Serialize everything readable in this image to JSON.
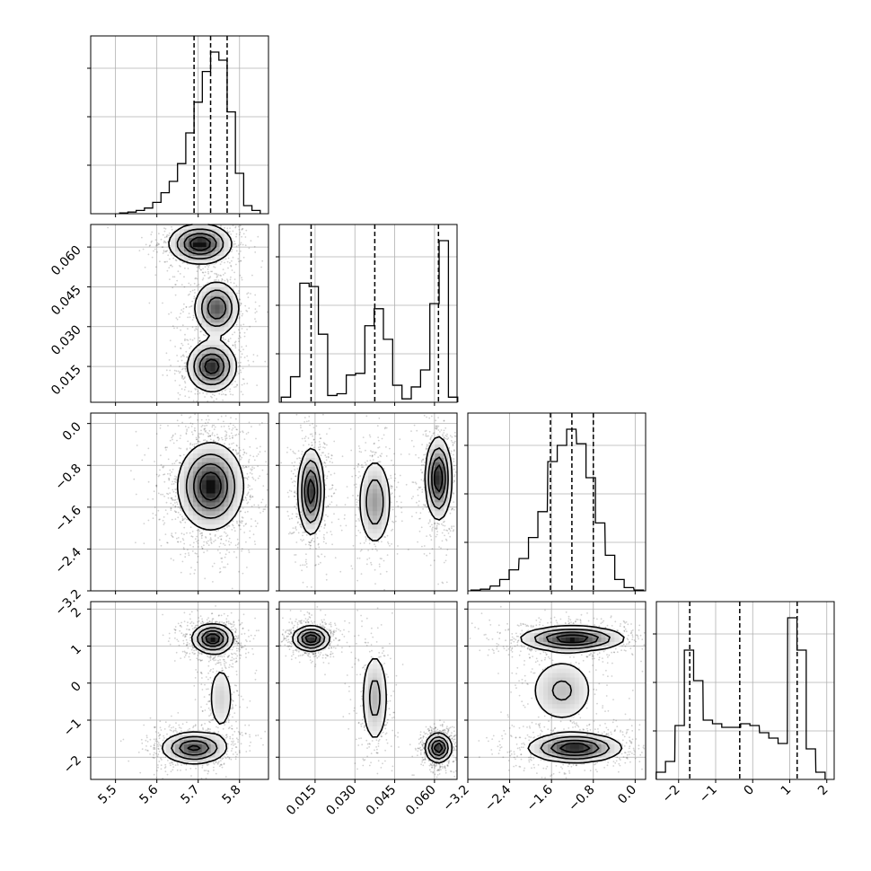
{
  "chart_data": {
    "type": "corner",
    "parameters": [
      {
        "name": "",
        "range": [
          5.44,
          5.87
        ],
        "ticks": [
          5.5,
          5.6,
          5.7,
          5.8
        ],
        "tick_labels": [
          "5.5",
          "5.6",
          "5.7",
          "5.8"
        ],
        "quantiles": [
          5.69,
          5.73,
          5.77
        ]
      },
      {
        "name": "",
        "range": [
          0.0015,
          0.0685
        ],
        "ticks": [
          0.015,
          0.03,
          0.045,
          0.06
        ],
        "tick_labels": [
          "0.015",
          "0.030",
          "0.045",
          "0.060"
        ],
        "quantiles": [
          0.0135,
          0.0375,
          0.0615
        ]
      },
      {
        "name": "",
        "range": [
          -3.2,
          0.2
        ],
        "ticks": [
          -3.2,
          -2.4,
          -1.6,
          -0.8,
          0.0
        ],
        "tick_labels": [
          "−3.2",
          "−2.4",
          "−1.6",
          "−0.8",
          "0.0"
        ],
        "quantiles": [
          -1.62,
          -1.21,
          -0.8
        ]
      },
      {
        "name": "",
        "range": [
          -2.6,
          2.2
        ],
        "ticks": [
          -2,
          -1,
          0,
          1,
          2
        ],
        "tick_labels": [
          "−2",
          "−1",
          "0",
          "1",
          "2"
        ],
        "quantiles": [
          -1.7,
          -0.35,
          1.2
        ]
      }
    ],
    "histograms": [
      {
        "param": 0,
        "x": [
          5.52,
          5.54,
          5.56,
          5.58,
          5.6,
          5.62,
          5.64,
          5.66,
          5.68,
          5.7,
          5.72,
          5.74,
          5.76,
          5.78,
          5.8,
          5.82,
          5.84
        ],
        "values": [
          0.005,
          0.01,
          0.02,
          0.035,
          0.07,
          0.13,
          0.2,
          0.31,
          0.5,
          0.69,
          0.88,
          1.0,
          0.95,
          0.63,
          0.25,
          0.05,
          0.02
        ]
      },
      {
        "param": 1,
        "x": [
          0.004,
          0.0075,
          0.011,
          0.0145,
          0.018,
          0.0215,
          0.025,
          0.0285,
          0.032,
          0.0355,
          0.039,
          0.0425,
          0.046,
          0.0495,
          0.053,
          0.0565,
          0.06,
          0.0635,
          0.067
        ],
        "values": [
          0.03,
          0.15,
          0.7,
          0.68,
          0.4,
          0.04,
          0.05,
          0.16,
          0.17,
          0.45,
          0.55,
          0.37,
          0.1,
          0.02,
          0.09,
          0.19,
          0.58,
          0.95,
          0.03
        ]
      },
      {
        "param": 2,
        "x": [
          -3.05,
          -2.87,
          -2.68,
          -2.5,
          -2.32,
          -2.13,
          -1.95,
          -1.77,
          -1.58,
          -1.4,
          -1.22,
          -1.03,
          -0.85,
          -0.67,
          -0.48,
          -0.3,
          -0.12,
          0.07
        ],
        "values": [
          0.005,
          0.01,
          0.03,
          0.07,
          0.13,
          0.2,
          0.33,
          0.49,
          0.8,
          0.9,
          1.0,
          0.91,
          0.7,
          0.42,
          0.22,
          0.07,
          0.02,
          0.005
        ]
      },
      {
        "param": 3,
        "x": [
          -2.48,
          -2.23,
          -1.97,
          -1.72,
          -1.47,
          -1.21,
          -0.96,
          -0.71,
          -0.45,
          -0.2,
          0.05,
          0.31,
          0.56,
          0.81,
          1.07,
          1.32,
          1.57,
          1.83
        ],
        "values": [
          0.04,
          0.1,
          0.3,
          0.72,
          0.55,
          0.33,
          0.31,
          0.29,
          0.29,
          0.31,
          0.3,
          0.26,
          0.23,
          0.2,
          0.9,
          0.72,
          0.17,
          0.04
        ]
      }
    ],
    "contour_panels": [
      {
        "row": 1,
        "col": 0,
        "modes": [
          {
            "x": 5.705,
            "y": 0.0612,
            "sx": 0.038,
            "sy": 0.0038,
            "rot": -0.15,
            "peak": 1.0
          },
          {
            "x": 5.745,
            "y": 0.037,
            "sx": 0.028,
            "sy": 0.0052,
            "rot": 0.0,
            "peak": 0.8
          },
          {
            "x": 5.733,
            "y": 0.015,
            "sx": 0.03,
            "sy": 0.0048,
            "rot": 0.12,
            "peak": 0.95
          }
        ]
      },
      {
        "row": 2,
        "col": 0,
        "modes": [
          {
            "x": 5.73,
            "y": -1.2,
            "sx": 0.04,
            "sy": 0.42,
            "rot": 0.0,
            "peak": 1.0
          }
        ]
      },
      {
        "row": 2,
        "col": 1,
        "modes": [
          {
            "x": 0.0135,
            "y": -1.3,
            "sx": 0.0025,
            "sy": 0.42,
            "rot": 1.0,
            "peak": 0.95
          },
          {
            "x": 0.0375,
            "y": -1.5,
            "sx": 0.0033,
            "sy": 0.45,
            "rot": 0.0,
            "peak": 0.55
          },
          {
            "x": 0.0615,
            "y": -1.05,
            "sx": 0.0025,
            "sy": 0.4,
            "rot": -0.5,
            "peak": 1.0
          }
        ]
      },
      {
        "row": 3,
        "col": 0,
        "modes": [
          {
            "x": 5.735,
            "y": 1.2,
            "sx": 0.025,
            "sy": 0.2,
            "rot": 0.0,
            "peak": 1.0
          },
          {
            "x": 5.69,
            "y": -1.75,
            "sx": 0.04,
            "sy": 0.22,
            "rot": -0.3,
            "peak": 0.85
          },
          {
            "x": 5.755,
            "y": -0.4,
            "sx": 0.018,
            "sy": 0.55,
            "rot": 0.3,
            "peak": 0.3
          }
        ]
      },
      {
        "row": 3,
        "col": 1,
        "modes": [
          {
            "x": 0.0135,
            "y": 1.2,
            "sx": 0.0035,
            "sy": 0.17,
            "rot": -0.5,
            "peak": 1.0
          },
          {
            "x": 0.0375,
            "y": -0.4,
            "sx": 0.0028,
            "sy": 0.7,
            "rot": 0.0,
            "peak": 0.45
          },
          {
            "x": 0.0615,
            "y": -1.75,
            "sx": 0.0025,
            "sy": 0.2,
            "rot": 0.3,
            "peak": 1.0
          }
        ]
      },
      {
        "row": 3,
        "col": 2,
        "modes": [
          {
            "x": -1.2,
            "y": 1.2,
            "sx": 0.5,
            "sy": 0.17,
            "rot": -0.1,
            "peak": 1.0
          },
          {
            "x": -1.15,
            "y": -1.75,
            "sx": 0.45,
            "sy": 0.2,
            "rot": -0.2,
            "peak": 1.0
          },
          {
            "x": -1.4,
            "y": -0.2,
            "sx": 0.35,
            "sy": 0.5,
            "rot": 0.0,
            "peak": 0.4
          }
        ]
      }
    ],
    "grid": true
  }
}
